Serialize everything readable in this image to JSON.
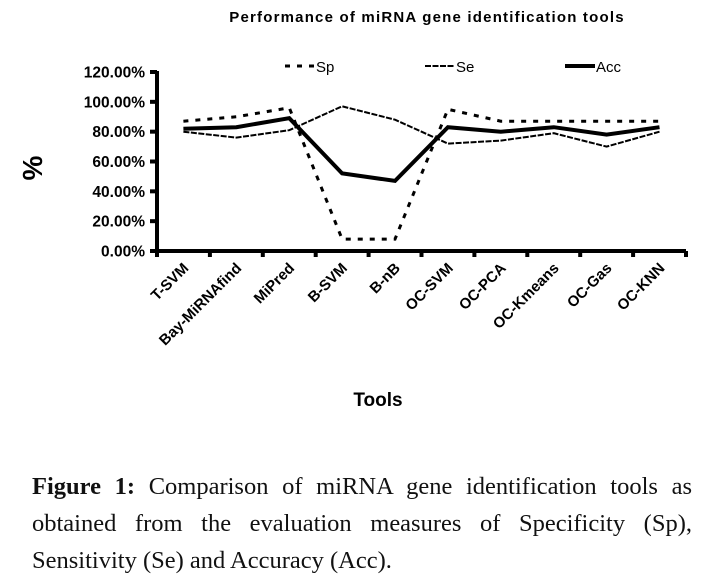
{
  "chart_data": {
    "type": "line",
    "title": "Performance of miRNA gene identification tools",
    "xlabel": "Tools",
    "ylabel": "%",
    "categories": [
      "T-SVM",
      "Bay-MiRNAfind",
      "MiPred",
      "B-SVM",
      "B-nB",
      "OC-SVM",
      "OC-PCA",
      "OC-Kmeans",
      "OC-Gas",
      "OC-KNN"
    ],
    "ylim": [
      0,
      120
    ],
    "yticks": [
      0,
      20,
      40,
      60,
      80,
      100,
      120
    ],
    "ytick_labels": [
      "0.00%",
      "20.00%",
      "40.00%",
      "60.00%",
      "80.00%",
      "100.00%",
      "120.00%"
    ],
    "grid": false,
    "legend_position": "top",
    "series": [
      {
        "name": "Sp",
        "style": "dotted",
        "values": [
          87,
          90,
          96,
          8,
          8,
          95,
          87,
          87,
          87,
          87
        ]
      },
      {
        "name": "Se",
        "style": "dashed-thin",
        "values": [
          80,
          76,
          81,
          97,
          88,
          72,
          74,
          79,
          70,
          80
        ]
      },
      {
        "name": "Acc",
        "style": "solid-thick",
        "values": [
          82,
          83,
          89,
          52,
          47,
          83,
          80,
          83,
          78,
          83
        ]
      }
    ]
  },
  "caption": {
    "label": "Figure 1:",
    "text": " Comparison of miRNA gene identification tools as obtained from the evaluation measures of Specificity (Sp), Sensitivity  (Se) and Accuracy (Acc)."
  }
}
